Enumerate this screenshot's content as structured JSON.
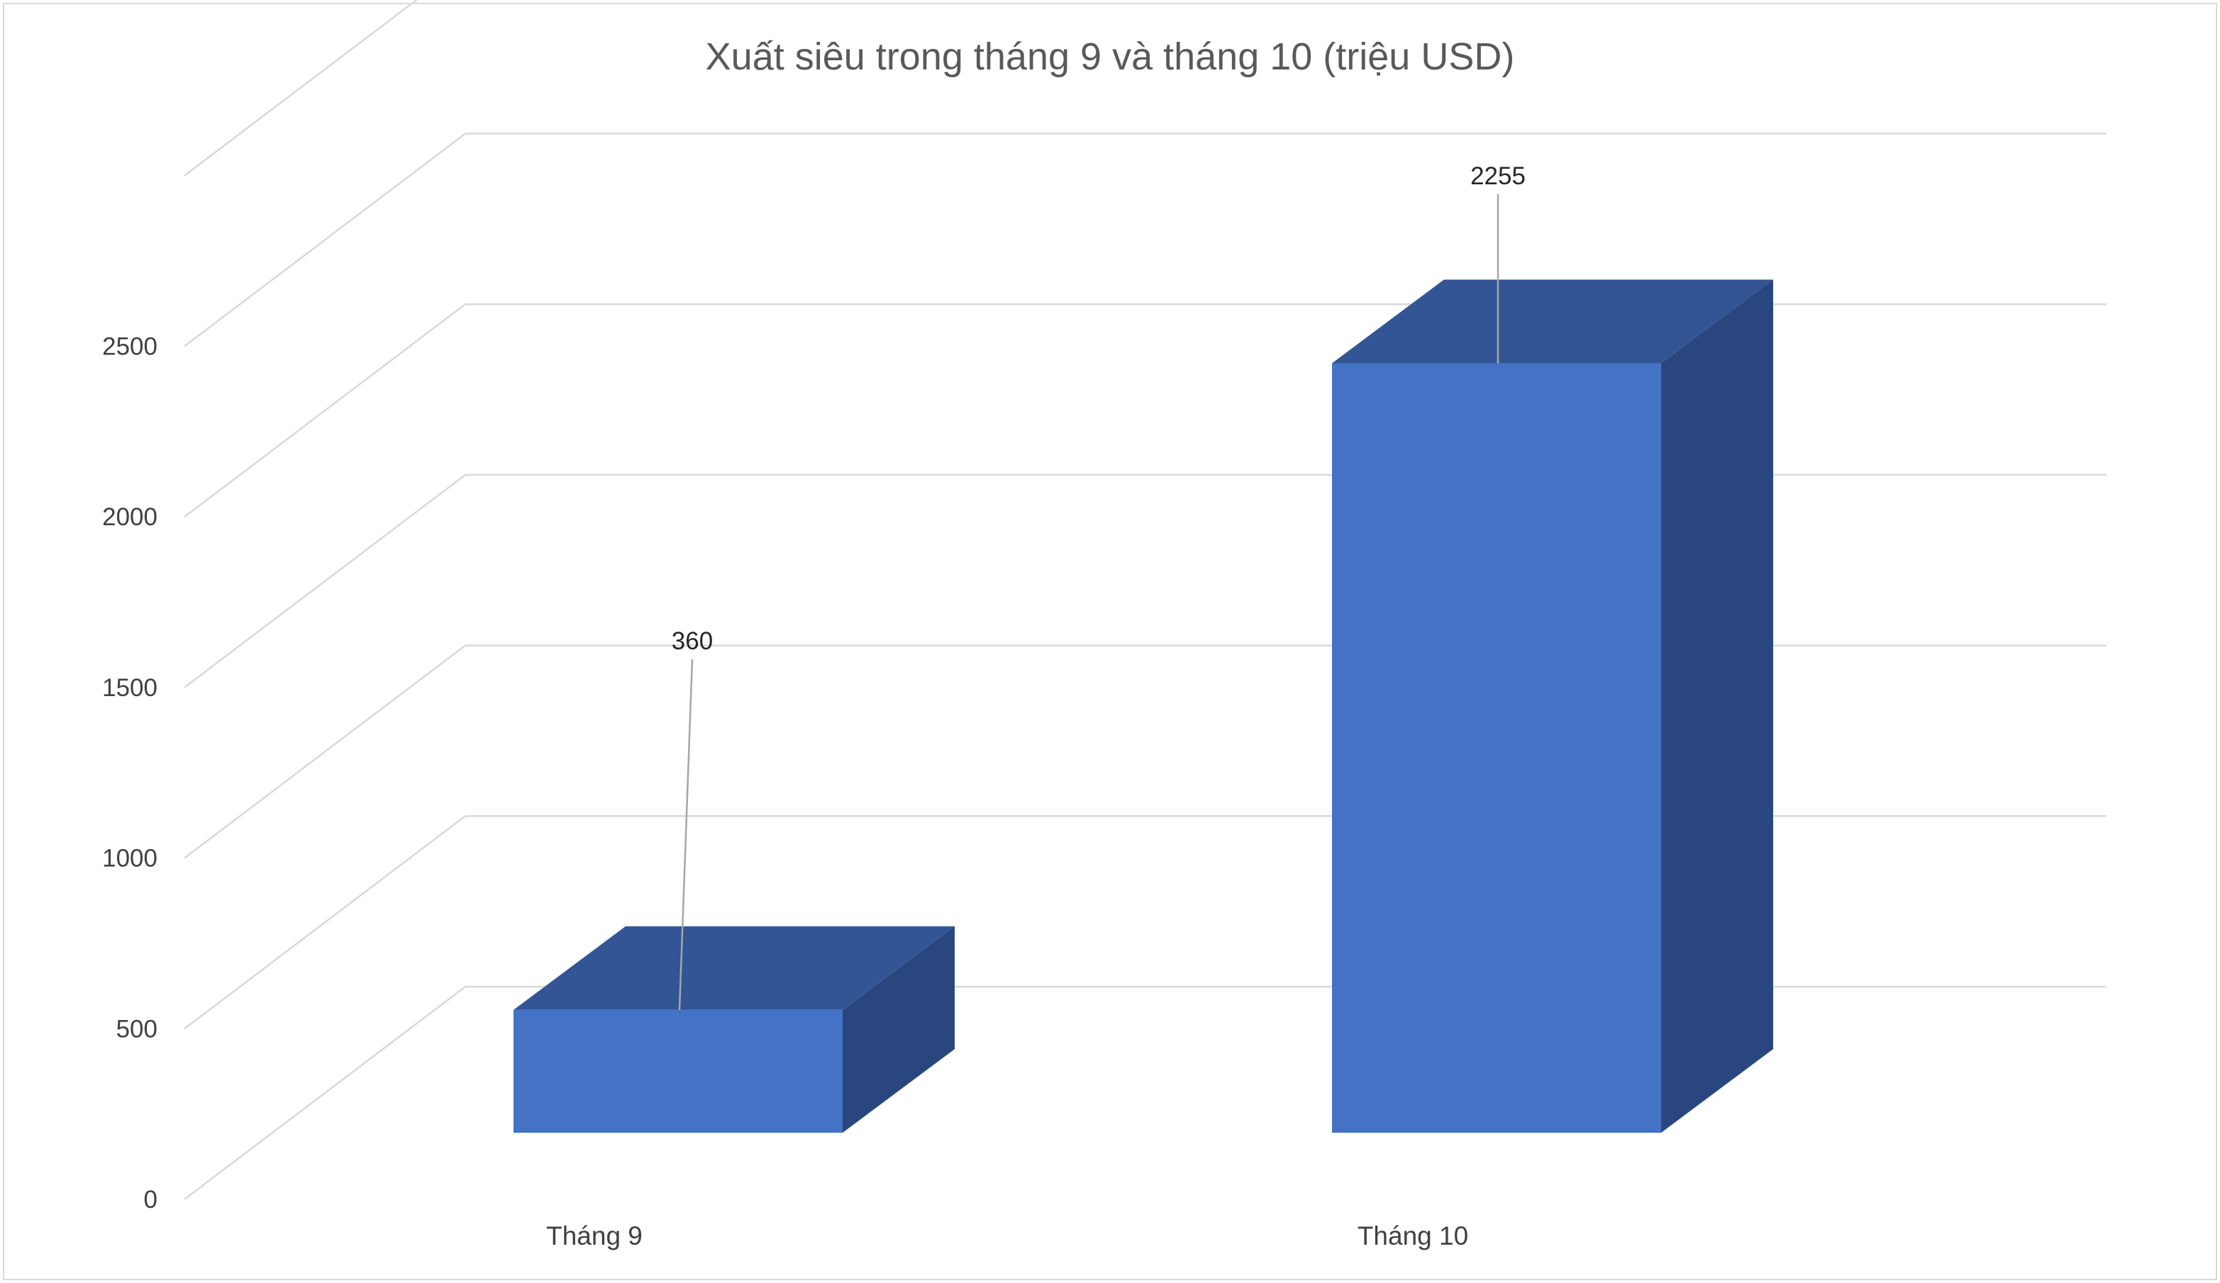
{
  "chart_data": {
    "type": "bar",
    "title": "Xuất siêu trong tháng 9 và tháng 10 (triệu USD)",
    "categories": [
      "Tháng 9",
      "Tháng 10"
    ],
    "series": [
      {
        "values": [
          360,
          2255
        ]
      }
    ],
    "data_labels": [
      "360",
      "2255"
    ],
    "y_ticks": [
      0,
      500,
      1000,
      1500,
      2000,
      2500
    ],
    "y_tick_labels": [
      "0",
      "500",
      "1000",
      "1500",
      "2000",
      "2500"
    ],
    "ylim": [
      0,
      3000
    ],
    "grid": true,
    "legend": "none",
    "three_d": true,
    "colors": {
      "bar_front": "#4472C4",
      "bar_top": "#335595",
      "bar_side": "#29477E",
      "grid": "#d9d9d9",
      "leader": "#a6a6a6"
    }
  }
}
